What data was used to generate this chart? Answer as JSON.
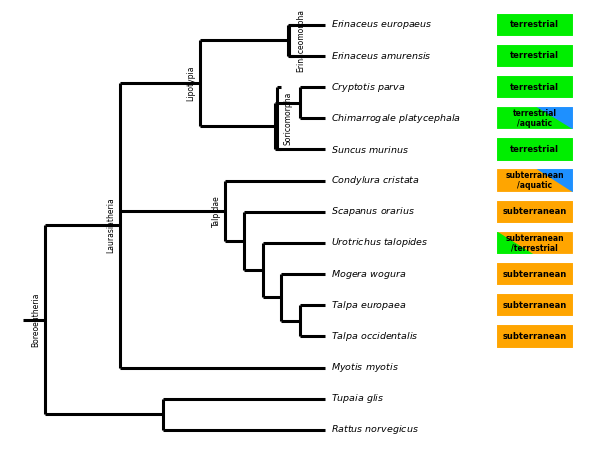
{
  "taxa": [
    "Erinaceus europaeus",
    "Erinaceus amurensis",
    "Cryptotis parva",
    "Chimarrogale platycephala",
    "Suncus murinus",
    "Condylura cristata",
    "Scapanus orarius",
    "Urotrichus talopides",
    "Mogera wogura",
    "Talpa europaea",
    "Talpa occidentalis",
    "Myotis myotis",
    "Tupaia glis",
    "Rattus norvegicus"
  ],
  "habitat_labels": [
    "terrestrial",
    "terrestrial",
    "terrestrial",
    "terrestrial\n/aquatic",
    "terrestrial",
    "subterranean\n/aquatic",
    "subterranean",
    "subterranean\n/terrestrial",
    "subterranean",
    "subterranean",
    "subterranean",
    null,
    null,
    null
  ],
  "green": "#00ee00",
  "orange": "#ffa500",
  "blue": "#1e90ff",
  "line_color": "#000000",
  "line_width": 2.2,
  "bg_color": "#ffffff",
  "taxa_font_size": 6.8,
  "clade_font_size": 5.5,
  "habitat_font_size": 6.0
}
